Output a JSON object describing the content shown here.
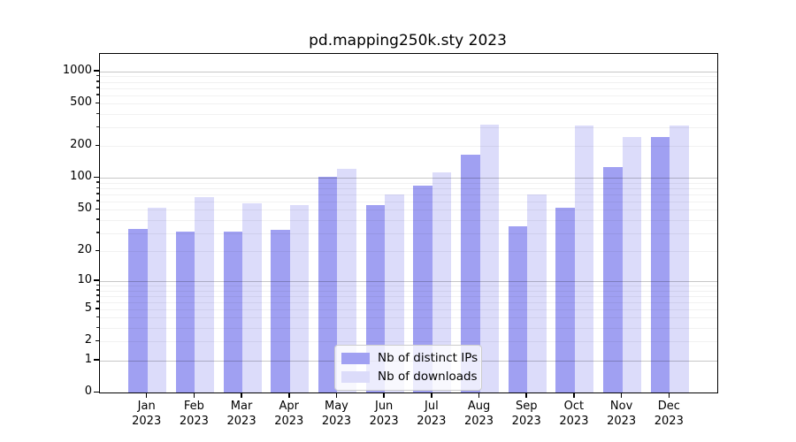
{
  "chart_data": {
    "type": "bar",
    "title": "pd.mapping250k.sty 2023",
    "categories": [
      "Jan",
      "Feb",
      "Mar",
      "Apr",
      "May",
      "Jun",
      "Jul",
      "Aug",
      "Sep",
      "Oct",
      "Nov",
      "Dec"
    ],
    "year_label": "2023",
    "series": [
      {
        "name": "Nb of distinct IPs",
        "color": "#a0a0f2",
        "values": [
          33,
          31,
          31,
          32,
          102,
          56,
          85,
          165,
          35,
          52,
          127,
          245
        ]
      },
      {
        "name": "Nb of downloads",
        "color": "#dcdcfa",
        "values": [
          52,
          66,
          58,
          56,
          122,
          70,
          113,
          320,
          70,
          315,
          245,
          310
        ]
      }
    ],
    "xlabel": "",
    "ylabel": "",
    "yscale": "log(1+y)",
    "ylim": [
      0,
      1460
    ],
    "yticks": [
      0,
      1,
      2,
      5,
      10,
      20,
      50,
      100,
      200,
      500,
      1000
    ],
    "grid": "major+minor horizontal",
    "legend_position": "lower-center"
  }
}
